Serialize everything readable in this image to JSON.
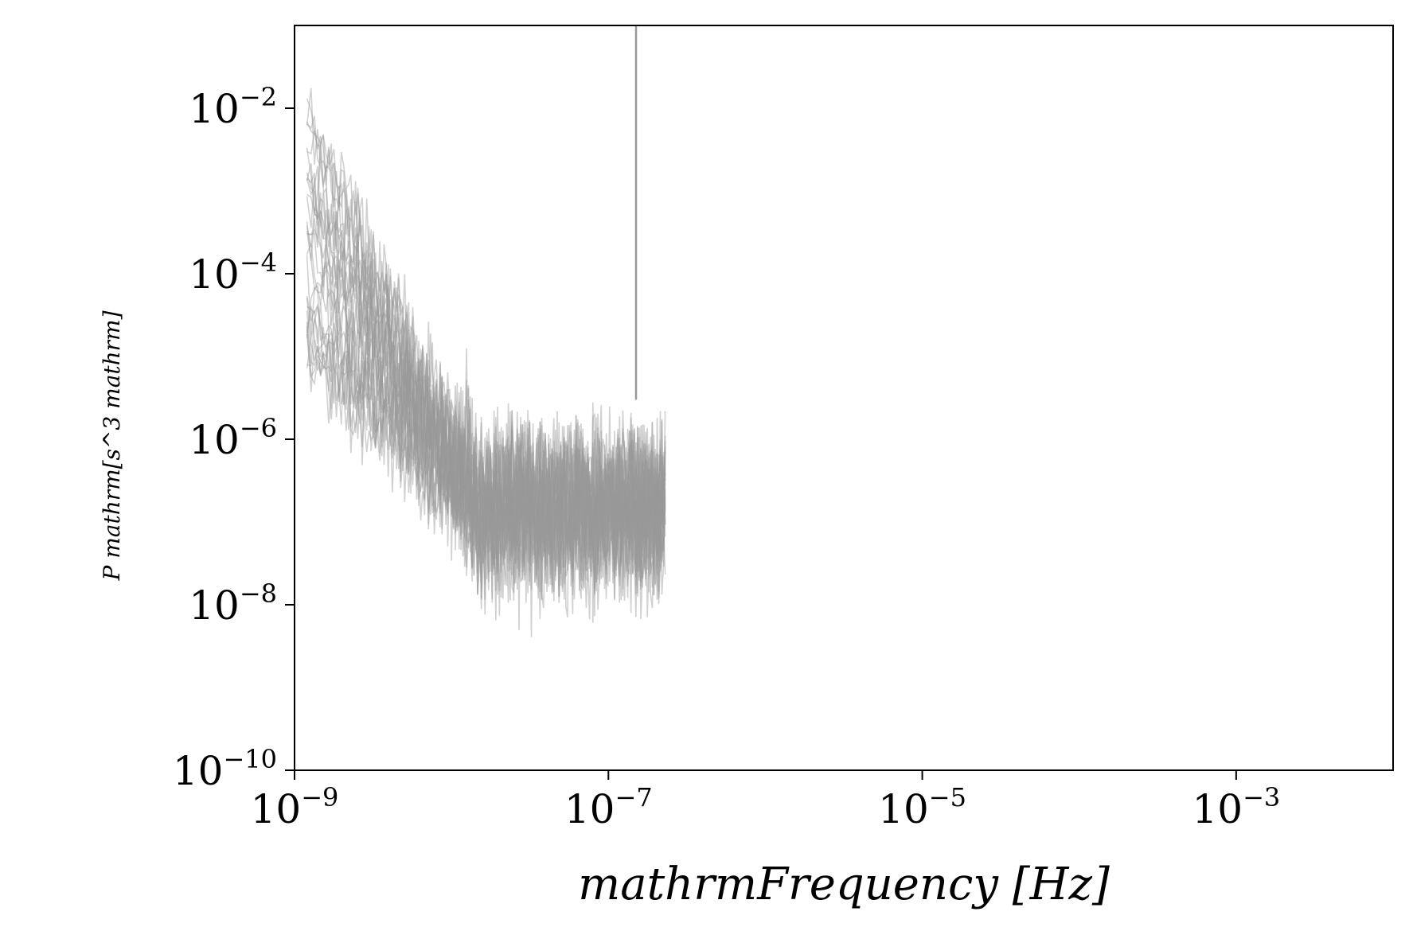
{
  "chart_data": {
    "type": "line",
    "title": "",
    "xlabel": "mathrmFrequency [Hz]",
    "ylabel": "P mathrm[s^3 mathrm]",
    "x_scale": "log",
    "y_scale": "log",
    "xlim": [
      1e-09,
      0.01
    ],
    "ylim": [
      1e-10,
      0.1
    ],
    "grid": false,
    "legend": "none",
    "line_color": "#999999",
    "line_opacity": 0.45,
    "x_ticks": [
      {
        "value": 1e-09,
        "label": "10^{-9}"
      },
      {
        "value": 1e-07,
        "label": "10^{-7}"
      },
      {
        "value": 1e-05,
        "label": "10^{-5}"
      },
      {
        "value": 0.001,
        "label": "10^{-3}"
      }
    ],
    "y_ticks": [
      {
        "value": 1e-10,
        "label": "10^{-10}"
      },
      {
        "value": 1e-08,
        "label": "10^{-8}"
      },
      {
        "value": 1e-06,
        "label": "10^{-6}"
      },
      {
        "value": 0.0001,
        "label": "10^{-4}"
      },
      {
        "value": 0.01,
        "label": "10^{-2}"
      }
    ],
    "series_summary": {
      "count": 30,
      "f_min": 1.2e-09,
      "f_max": 2.3e-07,
      "n_points": 190,
      "low_freq_power_range": [
        1e-05,
        0.01
      ],
      "plateau_power_center": 1.5e-07,
      "plateau_power_floor": 1e-09,
      "plateau_power_ceiling": 3e-06,
      "spike_frequency": 1.5e-07,
      "spike_power_peak": 0.1
    },
    "series": [
      {
        "name": "",
        "envelope": [
          [
            1.2e-09,
            0.011
          ],
          [
            2e-09,
            0.0005
          ],
          [
            5e-09,
            2e-05
          ],
          [
            1e-08,
            1e-06
          ],
          [
            2e-08,
            2e-07
          ],
          [
            1e-07,
            2e-07
          ],
          [
            2.3e-07,
            2e-07
          ]
        ]
      }
    ]
  }
}
